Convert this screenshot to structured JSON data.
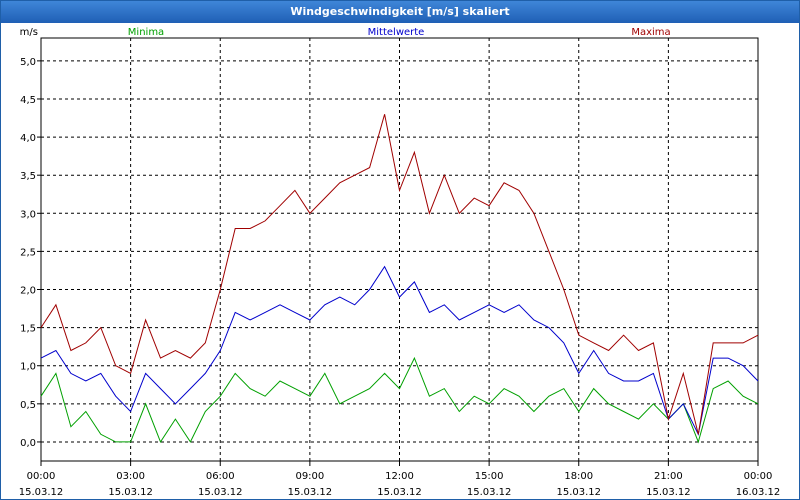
{
  "window": {
    "title": "Windgeschwindigkeit [m/s] skaliert"
  },
  "chart_data": {
    "type": "line",
    "ylabel": "m/s",
    "ylim": [
      -0.25,
      5.3
    ],
    "grid": true,
    "legend_placement": "top",
    "yticks": [
      "0,0",
      "0,5",
      "1,0",
      "1,5",
      "2,0",
      "2,5",
      "3,0",
      "3,5",
      "4,0",
      "4,5",
      "5,0"
    ],
    "ytick_values": [
      0,
      0.5,
      1,
      1.5,
      2,
      2.5,
      3,
      3.5,
      4,
      4.5,
      5
    ],
    "xticks": [
      {
        "time": "00:00",
        "date": "15.03.12",
        "hour": 0
      },
      {
        "time": "03:00",
        "date": "15.03.12",
        "hour": 3
      },
      {
        "time": "06:00",
        "date": "15.03.12",
        "hour": 6
      },
      {
        "time": "09:00",
        "date": "15.03.12",
        "hour": 9
      },
      {
        "time": "12:00",
        "date": "15.03.12",
        "hour": 12
      },
      {
        "time": "15:00",
        "date": "15.03.12",
        "hour": 15
      },
      {
        "time": "18:00",
        "date": "15.03.12",
        "hour": 18
      },
      {
        "time": "21:00",
        "date": "15.03.12",
        "hour": 21
      },
      {
        "time": "00:00",
        "date": "16.03.12",
        "hour": 24
      }
    ],
    "x_hours": [
      0,
      0.5,
      1,
      1.5,
      2,
      2.5,
      3,
      3.5,
      4,
      4.5,
      5,
      5.5,
      6,
      6.5,
      7,
      7.5,
      8,
      8.5,
      9,
      9.5,
      10,
      10.5,
      11,
      11.5,
      12,
      12.5,
      13,
      13.5,
      14,
      14.5,
      15,
      15.5,
      16,
      16.5,
      17,
      17.5,
      18,
      18.5,
      19,
      19.5,
      20,
      20.5,
      21,
      21.5,
      22,
      22.5,
      23,
      23.5,
      24
    ],
    "series": [
      {
        "name": "Minima",
        "color": "#00a000",
        "values": [
          0.6,
          0.9,
          0.2,
          0.4,
          0.1,
          0.0,
          0.0,
          0.5,
          0.0,
          0.3,
          0.0,
          0.4,
          0.6,
          0.9,
          0.7,
          0.6,
          0.8,
          0.7,
          0.6,
          0.9,
          0.5,
          0.6,
          0.7,
          0.9,
          0.7,
          1.1,
          0.6,
          0.7,
          0.4,
          0.6,
          0.5,
          0.7,
          0.6,
          0.4,
          0.6,
          0.7,
          0.4,
          0.7,
          0.5,
          0.4,
          0.3,
          0.5,
          0.3,
          0.5,
          0.0,
          0.7,
          0.8,
          0.6,
          0.5
        ]
      },
      {
        "name": "Mittelwerte",
        "color": "#0000cc",
        "values": [
          1.1,
          1.2,
          0.9,
          0.8,
          0.9,
          0.6,
          0.4,
          0.9,
          0.7,
          0.5,
          0.7,
          0.9,
          1.2,
          1.7,
          1.6,
          1.7,
          1.8,
          1.7,
          1.6,
          1.8,
          1.9,
          1.8,
          2.0,
          2.3,
          1.9,
          2.1,
          1.7,
          1.8,
          1.6,
          1.7,
          1.8,
          1.7,
          1.8,
          1.6,
          1.5,
          1.3,
          0.9,
          1.2,
          0.9,
          0.8,
          0.8,
          0.9,
          0.3,
          0.5,
          0.1,
          1.1,
          1.1,
          1.0,
          0.8
        ]
      },
      {
        "name": "Maxima",
        "color": "#a00000",
        "values": [
          1.5,
          1.8,
          1.2,
          1.3,
          1.5,
          1.0,
          0.9,
          1.6,
          1.1,
          1.2,
          1.1,
          1.3,
          2.0,
          2.8,
          2.8,
          2.9,
          3.1,
          3.3,
          3.0,
          3.2,
          3.4,
          3.5,
          3.6,
          4.3,
          3.3,
          3.8,
          3.0,
          3.5,
          3.0,
          3.2,
          3.1,
          3.4,
          3.3,
          3.0,
          2.5,
          2.0,
          1.4,
          1.3,
          1.2,
          1.4,
          1.2,
          1.3,
          0.3,
          0.9,
          0.1,
          1.3,
          1.3,
          1.3,
          1.4
        ]
      }
    ]
  }
}
